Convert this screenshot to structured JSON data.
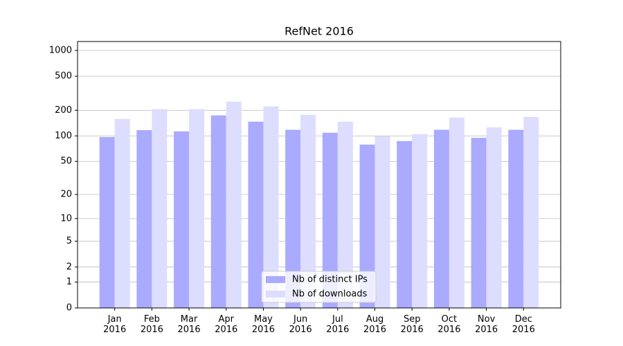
{
  "chart_data": {
    "type": "bar",
    "title": "RefNet 2016",
    "categories": [
      "Jan 2016",
      "Feb 2016",
      "Mar 2016",
      "Apr 2016",
      "May 2016",
      "Jun 2016",
      "Jul 2016",
      "Aug 2016",
      "Sep 2016",
      "Oct 2016",
      "Nov 2016",
      "Dec 2016"
    ],
    "series": [
      {
        "name": "Nb of distinct IPs",
        "color": "#aaaaff",
        "values": [
          97,
          117,
          113,
          174,
          147,
          118,
          109,
          79,
          87,
          118,
          95,
          118
        ]
      },
      {
        "name": "Nb of downloads",
        "color": "#ddddff",
        "values": [
          158,
          206,
          206,
          252,
          222,
          177,
          147,
          99,
          105,
          164,
          126,
          167
        ]
      }
    ],
    "scale": "symlog",
    "ylim": [
      0,
      1270
    ],
    "yticks": [
      0,
      1,
      2,
      5,
      10,
      20,
      50,
      100,
      200,
      500,
      1000
    ],
    "grid": true,
    "legend": "lower center"
  }
}
